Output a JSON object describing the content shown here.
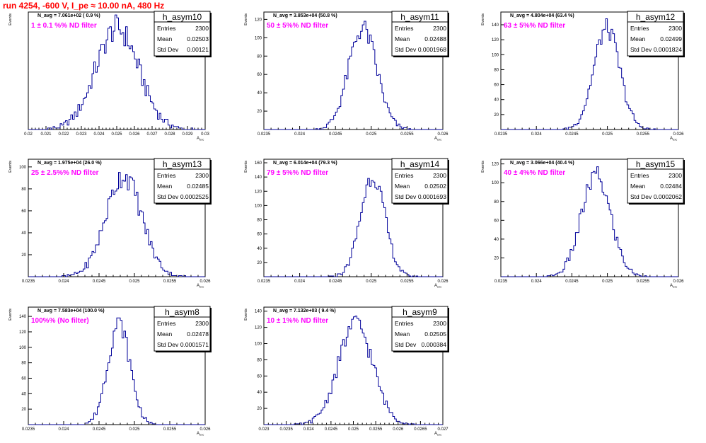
{
  "page": {
    "title": "run 4254,  -600 V, I_pe ≈ 10.00 nA, 480 Hz"
  },
  "chart_data": [
    {
      "type": "histogram",
      "name": "h_asym10",
      "label": "N_avg = 7.061e+02 ( 0.9 %)",
      "filter": "1 ± 0.1 %% ND filter",
      "xlabel": "A_exc",
      "ylabel": "Events",
      "xlim": [
        0.02,
        0.03
      ],
      "ylim": [
        0,
        80
      ],
      "xticks": [
        "0.02",
        "0.021",
        "0.022",
        "0.023",
        "0.024",
        "0.025",
        "0.026",
        "0.027",
        "0.028",
        "0.029",
        "0.03"
      ],
      "yticks": [],
      "mean": 0.02503,
      "std": 0.00121,
      "stats": [
        {
          "label": "Entries",
          "value": "2300"
        },
        {
          "label": "Mean",
          "value": "0.02503"
        },
        {
          "label": "Std Dev",
          "value": "0.00121"
        }
      ]
    },
    {
      "type": "histogram",
      "name": "h_asym11",
      "label": "N_avg = 3.853e+04 (50.8 %)",
      "filter": "50 ± 5%% ND filter",
      "xlabel": "A_exc",
      "ylabel": "Events",
      "xlim": [
        0.0235,
        0.026
      ],
      "ylim": [
        0,
        128
      ],
      "xticks": [
        "0.0235",
        "0.024",
        "0.0245",
        "0.025",
        "0.0255",
        "0.026"
      ],
      "yticks": [
        "20",
        "40",
        "60",
        "80",
        "100",
        "120"
      ],
      "mean": 0.02488,
      "std": 0.0001968,
      "stats": [
        {
          "label": "Entries",
          "value": "2300"
        },
        {
          "label": "Mean",
          "value": "0.02488"
        },
        {
          "label": "Std Dev",
          "value": "0.0001968"
        }
      ]
    },
    {
      "type": "histogram",
      "name": "h_asym12",
      "label": "N_avg = 4.804e+04 (63.4 %)",
      "filter": "63 ± 5%% ND filter",
      "xlabel": "A_exc",
      "ylabel": "Events",
      "xlim": [
        0.0235,
        0.026
      ],
      "ylim": [
        0,
        157
      ],
      "xticks": [
        "0.0235",
        "0.024",
        "0.0245",
        "0.025",
        "0.0255",
        "0.026"
      ],
      "yticks": [
        "20",
        "40",
        "60",
        "80",
        "100",
        "120",
        "140"
      ],
      "mean": 0.02499,
      "std": 0.0001824,
      "stats": [
        {
          "label": "Entries",
          "value": "2300"
        },
        {
          "label": "Mean",
          "value": "0.02499"
        },
        {
          "label": "Std Dev",
          "value": "0.0001824"
        }
      ]
    },
    {
      "type": "histogram",
      "name": "h_asym13",
      "label": "N_avg = 1.975e+04 (26.0 %)",
      "filter": "25 ± 2.5%% ND filter",
      "xlabel": "A_exc",
      "ylabel": "Events",
      "xlim": [
        0.0235,
        0.026
      ],
      "ylim": [
        0,
        107
      ],
      "xticks": [
        "0.0235",
        "0.024",
        "0.0245",
        "0.025",
        "0.0255",
        "0.026"
      ],
      "yticks": [
        "20",
        "40",
        "60",
        "80",
        "100"
      ],
      "mean": 0.02485,
      "std": 0.0002525,
      "stats": [
        {
          "label": "Entries",
          "value": "2300"
        },
        {
          "label": "Mean",
          "value": "0.02485"
        },
        {
          "label": "Std Dev",
          "value": "0.0002525"
        }
      ]
    },
    {
      "type": "histogram",
      "name": "h_asym14",
      "label": "N_avg = 6.014e+04 (79.3 %)",
      "filter": "79 ± 5%% ND filter",
      "xlabel": "A_exc",
      "ylabel": "Events",
      "xlim": [
        0.0235,
        0.026
      ],
      "ylim": [
        0,
        165
      ],
      "xticks": [
        "0.0235",
        "0.024",
        "0.0245",
        "0.025",
        "0.0255",
        "0.026"
      ],
      "yticks": [
        "20",
        "40",
        "60",
        "80",
        "100",
        "120",
        "140",
        "160"
      ],
      "mean": 0.02502,
      "std": 0.0001693,
      "stats": [
        {
          "label": "Entries",
          "value": "2300"
        },
        {
          "label": "Mean",
          "value": "0.02502"
        },
        {
          "label": "Std Dev",
          "value": "0.0001693"
        }
      ]
    },
    {
      "type": "histogram",
      "name": "h_asym15",
      "label": "N_avg = 3.066e+04 (40.4 %)",
      "filter": "40 ± 4%% ND filter",
      "xlabel": "A_exc",
      "ylabel": "Events",
      "xlim": [
        0.0235,
        0.026
      ],
      "ylim": [
        0,
        125
      ],
      "xticks": [
        "0.0235",
        "0.024",
        "0.0245",
        "0.025",
        "0.0255",
        "0.026"
      ],
      "yticks": [
        "20",
        "40",
        "60",
        "80",
        "100",
        "120"
      ],
      "mean": 0.02484,
      "std": 0.0002062,
      "stats": [
        {
          "label": "Entries",
          "value": "2300"
        },
        {
          "label": "Mean",
          "value": "0.02484"
        },
        {
          "label": "Std Dev",
          "value": "0.0002062"
        }
      ]
    },
    {
      "type": "histogram",
      "name": "h_asym8",
      "label": "N_avg = 7.583e+04 (100.0 %)",
      "filter": "100%% (No filter)",
      "xlabel": "A_exc",
      "ylabel": "Events",
      "xlim": [
        0.0235,
        0.026
      ],
      "ylim": [
        0,
        152
      ],
      "xticks": [
        "0.0235",
        "0.024",
        "0.0245",
        "0.025",
        "0.0255",
        "0.026"
      ],
      "yticks": [
        "20",
        "40",
        "60",
        "80",
        "100",
        "120",
        "140"
      ],
      "mean": 0.02478,
      "std": 0.0001571,
      "stats": [
        {
          "label": "Entries",
          "value": "2300"
        },
        {
          "label": "Mean",
          "value": "0.02478"
        },
        {
          "label": "Std Dev",
          "value": "0.0001571"
        }
      ]
    },
    {
      "type": "histogram",
      "name": "h_asym9",
      "label": "N_avg = 7.132e+03 ( 9.4 %)",
      "filter": "10 ± 1%% ND filter",
      "xlabel": "A_exc",
      "ylabel": "Events",
      "xlim": [
        0.023,
        0.027
      ],
      "ylim": [
        0,
        145
      ],
      "xticks": [
        "0.023",
        "0.0235",
        "0.024",
        "0.0245",
        "0.025",
        "0.0255",
        "0.026",
        "0.0265",
        "0.027"
      ],
      "yticks": [
        "20",
        "40",
        "60",
        "80",
        "100",
        "120",
        "140"
      ],
      "mean": 0.02505,
      "std": 0.000384,
      "stats": [
        {
          "label": "Entries",
          "value": "2300"
        },
        {
          "label": "Mean",
          "value": "0.02505"
        },
        {
          "label": "Std Dev",
          "value": "0.000384"
        }
      ]
    }
  ]
}
